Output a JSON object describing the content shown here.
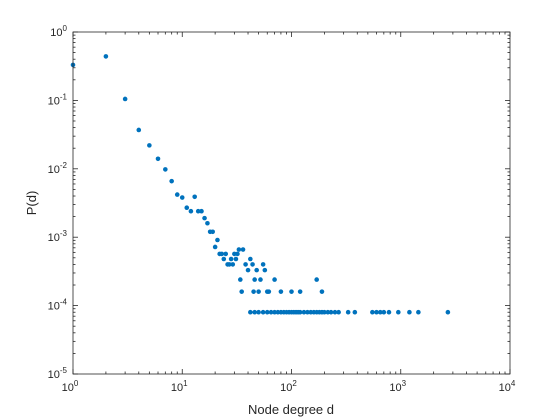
{
  "chart_data": {
    "type": "scatter",
    "title": "",
    "xlabel": "Node degree d",
    "ylabel": "P(d)",
    "xscale": "log",
    "yscale": "log",
    "xlim": [
      1,
      10000
    ],
    "ylim": [
      1e-05,
      1
    ],
    "grid": false,
    "legend": "none",
    "marker_color": "#0072BD",
    "x_ticks": [
      {
        "value": 1,
        "base": "10",
        "exp": "0"
      },
      {
        "value": 10,
        "base": "10",
        "exp": "1"
      },
      {
        "value": 100,
        "base": "10",
        "exp": "2"
      },
      {
        "value": 1000,
        "base": "10",
        "exp": "3"
      },
      {
        "value": 10000,
        "base": "10",
        "exp": "4"
      }
    ],
    "y_ticks": [
      {
        "value": 1,
        "base": "10",
        "exp": "0"
      },
      {
        "value": 0.1,
        "base": "10",
        "exp": "-1"
      },
      {
        "value": 0.01,
        "base": "10",
        "exp": "-2"
      },
      {
        "value": 0.001,
        "base": "10",
        "exp": "-3"
      },
      {
        "value": 0.0001,
        "base": "10",
        "exp": "-4"
      },
      {
        "value": 1e-05,
        "base": "10",
        "exp": "-5"
      }
    ],
    "points": [
      [
        1,
        0.33
      ],
      [
        2,
        0.44
      ],
      [
        3,
        0.105
      ],
      [
        4,
        0.037
      ],
      [
        5,
        0.022
      ],
      [
        6,
        0.014
      ],
      [
        7,
        0.0098
      ],
      [
        8,
        0.0066
      ],
      [
        9,
        0.0042
      ],
      [
        10,
        0.0038
      ],
      [
        11,
        0.0027
      ],
      [
        12,
        0.0024
      ],
      [
        13,
        0.0039
      ],
      [
        14,
        0.0024
      ],
      [
        15,
        0.0024
      ],
      [
        16,
        0.0019
      ],
      [
        17,
        0.0016
      ],
      [
        18,
        0.0012
      ],
      [
        19,
        0.0012
      ],
      [
        20,
        0.00072
      ],
      [
        21,
        0.00091
      ],
      [
        22,
        0.00057
      ],
      [
        23,
        0.00057
      ],
      [
        24,
        0.00048
      ],
      [
        25,
        0.00057
      ],
      [
        26,
        0.0004
      ],
      [
        27,
        0.0004
      ],
      [
        28,
        0.00048
      ],
      [
        29,
        0.0004
      ],
      [
        30,
        0.00057
      ],
      [
        31,
        0.00048
      ],
      [
        32,
        0.00057
      ],
      [
        33,
        0.00066
      ],
      [
        34,
        0.00024
      ],
      [
        35,
        0.00016
      ],
      [
        36,
        0.00066
      ],
      [
        38,
        0.0004
      ],
      [
        40,
        0.00033
      ],
      [
        42,
        0.00048
      ],
      [
        44,
        0.0004
      ],
      [
        45,
        0.00016
      ],
      [
        46,
        0.00024
      ],
      [
        48,
        0.00033
      ],
      [
        50,
        0.00016
      ],
      [
        52,
        0.00024
      ],
      [
        55,
        0.0004
      ],
      [
        57,
        0.00033
      ],
      [
        60,
        0.00016
      ],
      [
        42,
        8e-05
      ],
      [
        46,
        8e-05
      ],
      [
        50,
        8e-05
      ],
      [
        55,
        8e-05
      ],
      [
        60,
        8e-05
      ],
      [
        65,
        8e-05
      ],
      [
        70,
        8e-05
      ],
      [
        75,
        8e-05
      ],
      [
        80,
        8e-05
      ],
      [
        85,
        8e-05
      ],
      [
        90,
        8e-05
      ],
      [
        95,
        8e-05
      ],
      [
        100,
        8e-05
      ],
      [
        105,
        8e-05
      ],
      [
        110,
        8e-05
      ],
      [
        115,
        8e-05
      ],
      [
        120,
        8e-05
      ],
      [
        130,
        8e-05
      ],
      [
        140,
        8e-05
      ],
      [
        150,
        8e-05
      ],
      [
        160,
        8e-05
      ],
      [
        170,
        8e-05
      ],
      [
        180,
        8e-05
      ],
      [
        190,
        8e-05
      ],
      [
        200,
        8e-05
      ],
      [
        215,
        8e-05
      ],
      [
        230,
        8e-05
      ],
      [
        250,
        8e-05
      ],
      [
        270,
        8e-05
      ],
      [
        330,
        8e-05
      ],
      [
        380,
        8e-05
      ],
      [
        550,
        8e-05
      ],
      [
        600,
        8e-05
      ],
      [
        650,
        8e-05
      ],
      [
        700,
        8e-05
      ],
      [
        780,
        8e-05
      ],
      [
        950,
        8e-05
      ],
      [
        1200,
        8e-05
      ],
      [
        1450,
        8e-05
      ],
      [
        2700,
        8e-05
      ],
      [
        62,
        0.00016
      ],
      [
        80,
        0.00016
      ],
      [
        100,
        0.00016
      ],
      [
        120,
        0.00016
      ],
      [
        170,
        0.00024
      ],
      [
        190,
        0.00016
      ],
      [
        70,
        0.00024
      ]
    ]
  }
}
